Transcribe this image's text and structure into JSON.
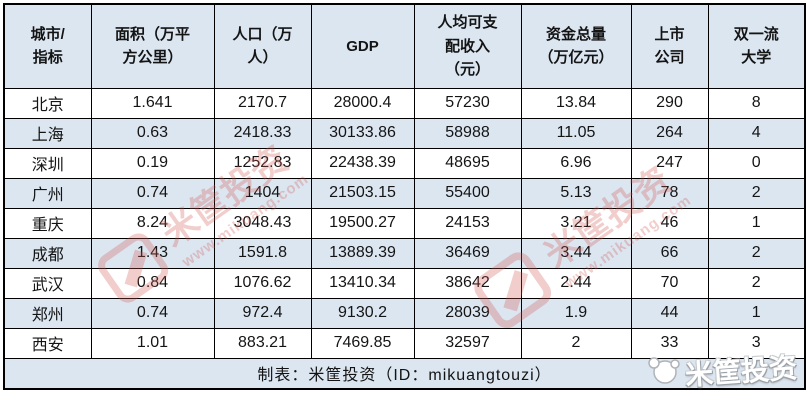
{
  "chart_data": {
    "type": "table",
    "title": "",
    "columns": [
      "城市/\n指标",
      "面积（万平\n方公里）",
      "人口（万\n人）",
      "GDP",
      "人均可支\n配收入\n（元）",
      "资金总量\n（万亿元）",
      "上市\n公司",
      "双一流\n大学"
    ],
    "rows": [
      [
        "北京",
        "1.641",
        "2170.7",
        "28000.4",
        "57230",
        "13.84",
        "290",
        "8"
      ],
      [
        "上海",
        "0.63",
        "2418.33",
        "30133.86",
        "58988",
        "11.05",
        "264",
        "4"
      ],
      [
        "深圳",
        "0.19",
        "1252.83",
        "22438.39",
        "48695",
        "6.96",
        "247",
        "0"
      ],
      [
        "广州",
        "0.74",
        "1404",
        "21503.15",
        "55400",
        "5.13",
        "78",
        "2"
      ],
      [
        "重庆",
        "8.24",
        "3048.43",
        "19500.27",
        "24153",
        "3.21",
        "46",
        "1"
      ],
      [
        "成都",
        "1.43",
        "1591.8",
        "13889.39",
        "36469",
        "3.44",
        "66",
        "2"
      ],
      [
        "武汉",
        "0.84",
        "1076.62",
        "13410.34",
        "38642",
        "2.44",
        "70",
        "2"
      ],
      [
        "郑州",
        "0.74",
        "972.4",
        "9130.2",
        "28039",
        "1.9",
        "44",
        "1"
      ],
      [
        "西安",
        "1.01",
        "883.21",
        "7469.85",
        "32597",
        "2",
        "33",
        "3"
      ]
    ],
    "footer": "制表：米筐投资（ID：mikuangtouzi）",
    "layout": {
      "header_background": "#dce6f1",
      "alt_row_background": "#dce6f1",
      "border_color": "#000000",
      "grid": "on"
    }
  },
  "watermark": {
    "brand": "米筐投资",
    "url": "www.mikuang.com",
    "red": "#d0544a"
  }
}
